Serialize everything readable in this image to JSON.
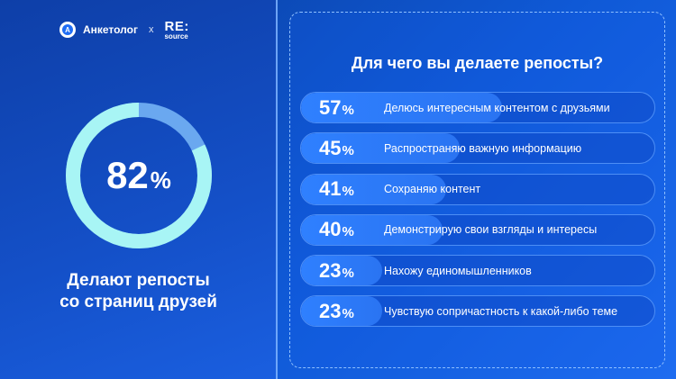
{
  "logos": {
    "anketolog": "Анкетолог",
    "separator": "x",
    "resource_top": "RE:",
    "resource_bottom": "source"
  },
  "colors": {
    "ring": "#a8f5f5",
    "ring_track": "#6aa8f0",
    "bar_fill": "#2f80ff",
    "background": "#0f59d6"
  },
  "chart_data": [
    {
      "type": "pie",
      "values": [
        82
      ],
      "value_label": "82",
      "value_suffix": "%",
      "caption_line1": "Делают репосты",
      "caption_line2": "со страниц друзей"
    },
    {
      "type": "bar",
      "title": "Для чего вы делаете репосты?",
      "categories": [
        "Делюсь интересным контентом с друзьями",
        "Распространяю важную информацию",
        "Сохраняю контент",
        "Демонстрирую свои взгляды и интересы",
        "Нахожу единомышленников",
        "Чувствую сопричастность к какой-либо теме"
      ],
      "values": [
        57,
        45,
        41,
        40,
        23,
        23
      ],
      "value_labels": [
        "57",
        "45",
        "41",
        "40",
        "23",
        "23"
      ],
      "value_suffix": "%",
      "xlim": [
        0,
        100
      ]
    }
  ]
}
